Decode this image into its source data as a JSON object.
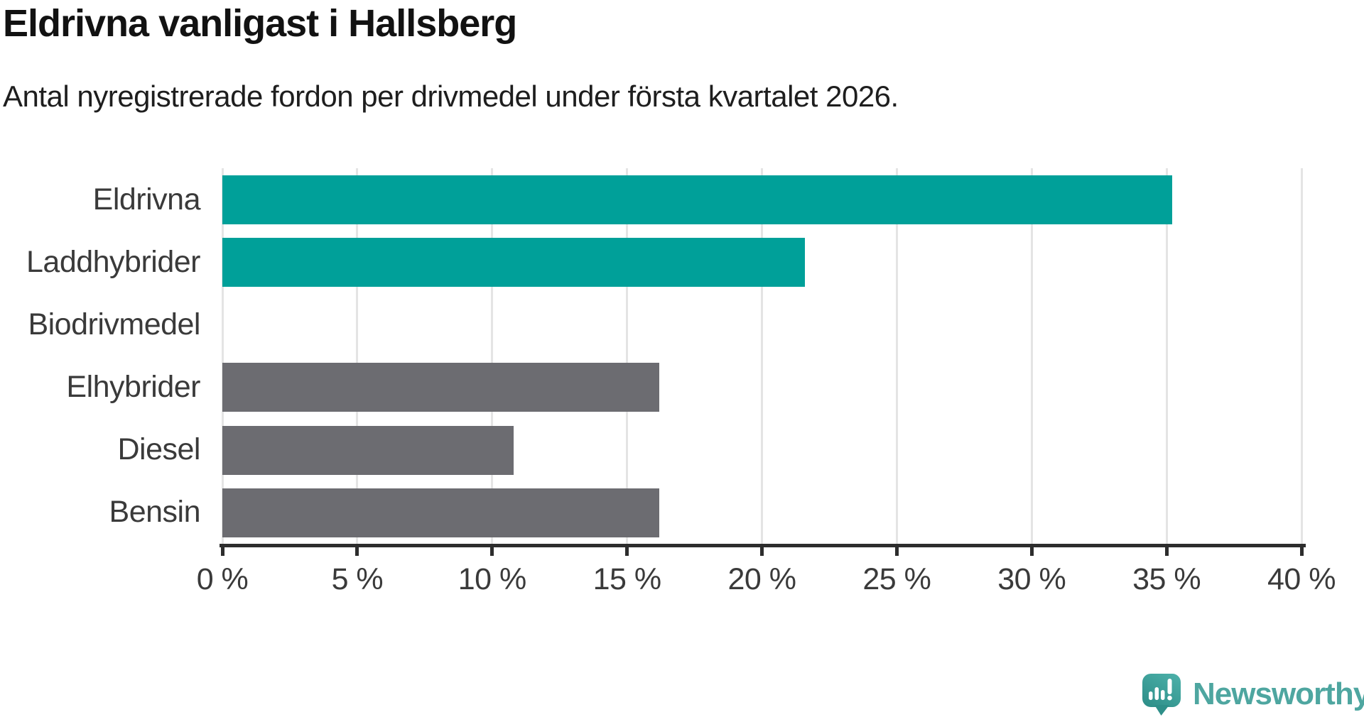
{
  "title": "Eldrivna vanligast i Hallsberg",
  "subtitle": "Antal nyregistrerade fordon per drivmedel under första kvartalet 2026.",
  "chart_data": {
    "type": "bar",
    "orientation": "horizontal",
    "title": "Eldrivna vanligast i Hallsberg",
    "subtitle": "Antal nyregistrerade fordon per drivmedel under första kvartalet 2026.",
    "categories": [
      "Eldrivna",
      "Laddhybrider",
      "Biodrivmedel",
      "Elhybrider",
      "Diesel",
      "Bensin"
    ],
    "values": [
      35.2,
      21.6,
      0,
      16.2,
      10.8,
      16.2
    ],
    "unit": "%",
    "xlim": [
      0,
      40
    ],
    "x_ticks": [
      0,
      5,
      10,
      15,
      20,
      25,
      30,
      35,
      40
    ],
    "x_tick_labels": [
      "0 %",
      "5 %",
      "10 %",
      "15 %",
      "20 %",
      "25 %",
      "30 %",
      "35 %",
      "40 %"
    ],
    "grid": true,
    "legend": "none",
    "bar_colors": [
      "#00A099",
      "#00A099",
      "#00A099",
      "#6C6C71",
      "#6C6C71",
      "#6C6C71"
    ],
    "colors": {
      "teal_bar": "#00A099",
      "gray_bar": "#6C6C71",
      "gridline": "#E4E4E4",
      "axis": "#2D2D2D",
      "tick_text": "#3A3A3A"
    }
  },
  "branding": {
    "logo_text": "Newsworthy",
    "logo_text_color": "#4EA6A0",
    "logo_mark_color_light": "#4BAFA8",
    "logo_mark_color_dark": "#2E8F89"
  }
}
